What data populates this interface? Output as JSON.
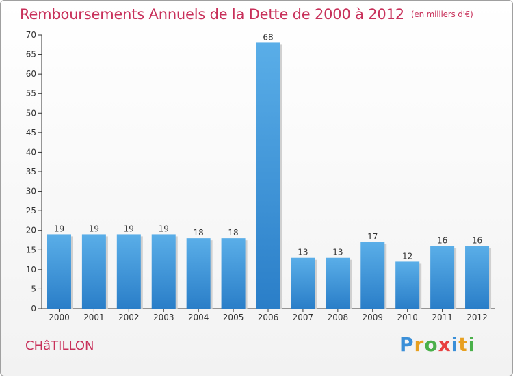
{
  "title": "Remboursements Annuels de la Dette de 2000 à 2012",
  "subtitle": "(en milliers d'€)",
  "place": "CHâTILLON",
  "logo": {
    "letters": [
      "P",
      "r",
      "o",
      "x",
      "i",
      "t",
      "i"
    ],
    "colors": [
      "#3a8fd8",
      "#e8a020",
      "#4ab04a",
      "#e84040",
      "#3a8fd8",
      "#e8a020",
      "#4ab04a"
    ]
  },
  "colors": {
    "title": "#c8305a",
    "bar_top": "#5aaee8",
    "bar_bottom": "#2a7ec8",
    "axis": "#333333"
  },
  "chart_data": {
    "type": "bar",
    "categories": [
      "2000",
      "2001",
      "2002",
      "2003",
      "2004",
      "2005",
      "2006",
      "2007",
      "2008",
      "2009",
      "2010",
      "2011",
      "2012"
    ],
    "values": [
      19,
      19,
      19,
      19,
      18,
      18,
      68,
      13,
      13,
      17,
      12,
      16,
      16
    ],
    "ylim": [
      0,
      70
    ],
    "yticks": [
      0,
      5,
      10,
      15,
      20,
      25,
      30,
      35,
      40,
      45,
      50,
      55,
      60,
      65,
      70
    ],
    "grid": false,
    "data_labels": true
  }
}
